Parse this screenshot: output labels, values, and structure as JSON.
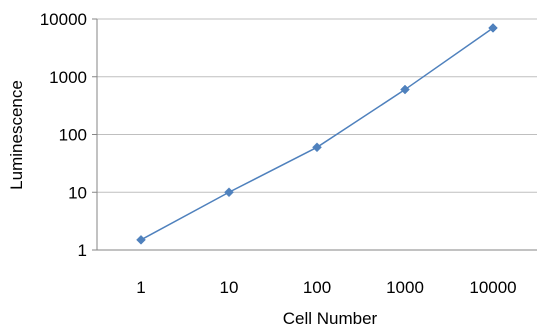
{
  "chart_data": {
    "type": "line",
    "title": "",
    "xlabel": "Cell Number",
    "ylabel": "Luminescence",
    "x_scale": "log",
    "y_scale": "log",
    "x_tick_labels": [
      "1",
      "10",
      "100",
      "1000",
      "10000"
    ],
    "y_tick_labels": [
      "1",
      "10",
      "100",
      "1000",
      "10000"
    ],
    "xlim": [
      1,
      10000
    ],
    "ylim": [
      1,
      10000
    ],
    "grid": "horizontal",
    "legend": "none",
    "series": [
      {
        "color": "#4F81BD",
        "marker": "diamond",
        "x": [
          1,
          10,
          100,
          1000,
          10000
        ],
        "y": [
          1.5,
          10,
          60,
          600,
          7000
        ]
      }
    ]
  }
}
